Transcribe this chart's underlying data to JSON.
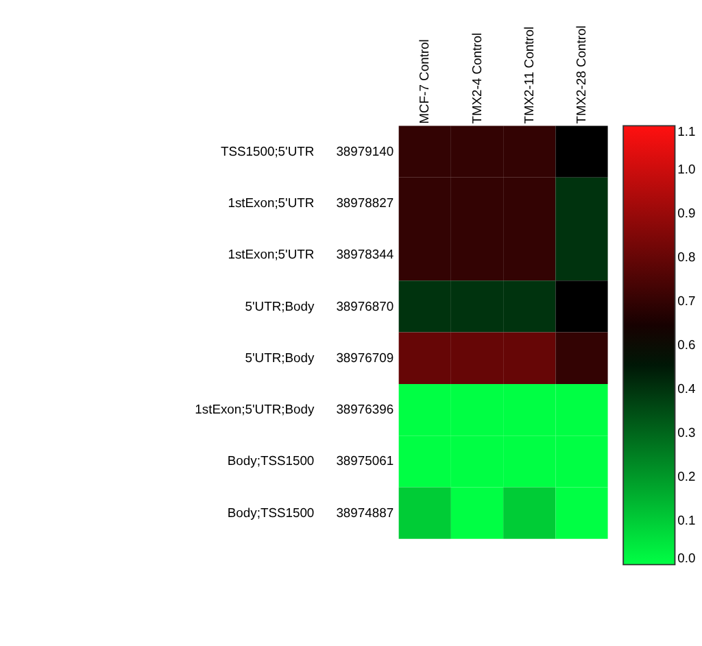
{
  "chart_data": {
    "type": "heatmap",
    "categories": [
      "MCF-7 Control",
      "TMX2-4 Control",
      "TMX2-11 Control",
      "TMX2-28 Control"
    ],
    "y_categories": [
      "TSS1500;5'UTR",
      "1stExon;5'UTR",
      "1stExon;5'UTR",
      "5'UTR;Body",
      "5'UTR;Body",
      "1stExon;5'UTR;Body",
      "Body;TSS1500",
      "Body;TSS1500"
    ],
    "y2_categories": [
      "38979140",
      "38978827",
      "38978344",
      "38976870",
      "38976709",
      "38976396",
      "38975061",
      "38974887"
    ],
    "cells": [
      [
        0.66,
        0.66,
        0.66,
        0.55
      ],
      [
        0.66,
        0.66,
        0.66,
        0.44
      ],
      [
        0.66,
        0.66,
        0.66,
        0.44
      ],
      [
        0.44,
        0.44,
        0.44,
        0.55
      ],
      [
        0.77,
        0.77,
        0.77,
        0.66
      ],
      [
        0,
        0,
        0,
        0
      ],
      [
        0,
        0,
        0,
        0
      ],
      [
        0.11,
        0,
        0.11,
        0
      ]
    ],
    "clim": [
      0,
      1.1
    ],
    "cticks": [
      {
        "value": 0,
        "label": "0.0"
      },
      {
        "value": 0.11,
        "label": "0.1"
      },
      {
        "value": 0.22,
        "label": "0.2"
      },
      {
        "value": 0.33,
        "label": "0.3"
      },
      {
        "value": 0.44,
        "label": "0.4"
      },
      {
        "value": 0.55,
        "label": "0.6"
      },
      {
        "value": 0.66,
        "label": "0.7"
      },
      {
        "value": 0.77,
        "label": "0.8"
      },
      {
        "value": 0.88,
        "label": "0.9"
      },
      {
        "value": 0.99,
        "label": "1.0"
      },
      {
        "value": 1.1,
        "label": "1.1"
      }
    ],
    "colors": [
      "#00ff44",
      "#000000",
      "#ff1010"
    ]
  }
}
